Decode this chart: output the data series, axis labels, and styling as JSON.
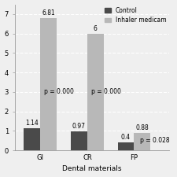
{
  "categories": [
    "GI",
    "CR",
    "FP"
  ],
  "control_values": [
    1.14,
    0.97,
    0.4
  ],
  "inhaler_values": [
    6.81,
    6,
    0.88
  ],
  "p_values": [
    "p = 0.000",
    "p = 0.000",
    "p = 0.028"
  ],
  "control_color": "#4a4a4a",
  "inhaler_color": "#b8b8b8",
  "bar_width": 0.35,
  "ylim": [
    0,
    7.5
  ],
  "xlabel": "Dental materials",
  "ylabel": "",
  "title": "",
  "legend_labels": [
    "Control",
    "Inhaler medicam"
  ],
  "background_color": "#efefef",
  "grid_color": "#ffffff",
  "label_fontsize": 6.5,
  "tick_fontsize": 6,
  "p_fontsize": 5.5,
  "value_fontsize": 5.5,
  "yticks": [
    0,
    1,
    2,
    3,
    4,
    5,
    6,
    7
  ]
}
